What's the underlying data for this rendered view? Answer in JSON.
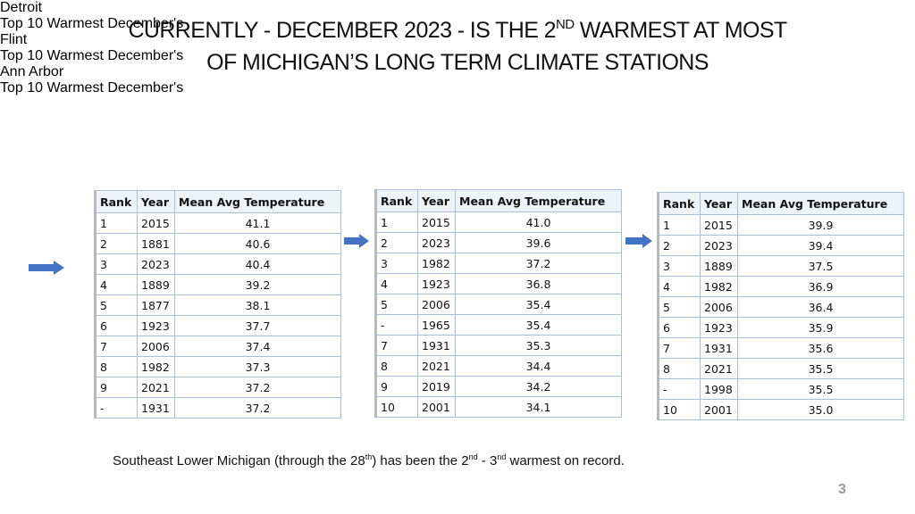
{
  "title": {
    "line1": [
      {
        "text": "CURRENTLY - DECEMBER 2023 - IS THE 2"
      },
      {
        "sup": "ND"
      },
      {
        "text": " WARMEST AT MOST"
      }
    ],
    "line2": "OF MICHIGAN’S LONG TERM  CLIMATE STATIONS"
  },
  "tables": [
    {
      "station": "Detroit",
      "subtitle": "Top 10 Warmest December's",
      "columns": [
        "Rank",
        "Year",
        "Mean Avg Temperature"
      ],
      "rows": [
        [
          "1",
          "2015",
          "41.1"
        ],
        [
          "2",
          "1881",
          "40.6"
        ],
        [
          "3",
          "2023",
          "40.4"
        ],
        [
          "4",
          "1889",
          "39.2"
        ],
        [
          "5",
          "1877",
          "38.1"
        ],
        [
          "6",
          "1923",
          "37.7"
        ],
        [
          "7",
          "2006",
          "37.4"
        ],
        [
          "8",
          "1982",
          "37.3"
        ],
        [
          "9",
          "2021",
          "37.2"
        ],
        [
          "-",
          "1931",
          "37.2"
        ]
      ]
    },
    {
      "station": "Flint",
      "subtitle": "Top 10 Warmest December's",
      "columns": [
        "Rank",
        "Year",
        "Mean Avg Temperature"
      ],
      "rows": [
        [
          "1",
          "2015",
          "41.0"
        ],
        [
          "2",
          "2023",
          "39.6"
        ],
        [
          "3",
          "1982",
          "37.2"
        ],
        [
          "4",
          "1923",
          "36.8"
        ],
        [
          "5",
          "2006",
          "35.4"
        ],
        [
          "-",
          "1965",
          "35.4"
        ],
        [
          "7",
          "1931",
          "35.3"
        ],
        [
          "8",
          "2021",
          "34.4"
        ],
        [
          "9",
          "2019",
          "34.2"
        ],
        [
          "10",
          "2001",
          "34.1"
        ]
      ]
    },
    {
      "station": "Ann Arbor",
      "subtitle": "Top 10 Warmest December's",
      "columns": [
        "Rank",
        "Year",
        "Mean Avg Temperature"
      ],
      "rows": [
        [
          "1",
          "2015",
          "39.9"
        ],
        [
          "2",
          "2023",
          "39.4"
        ],
        [
          "3",
          "1889",
          "37.5"
        ],
        [
          "4",
          "1982",
          "36.9"
        ],
        [
          "5",
          "2006",
          "36.4"
        ],
        [
          "6",
          "1923",
          "35.9"
        ],
        [
          "7",
          "1931",
          "35.6"
        ],
        [
          "8",
          "2021",
          "35.5"
        ],
        [
          "-",
          "1998",
          "35.5"
        ],
        [
          "10",
          "2001",
          "35.0"
        ]
      ]
    }
  ],
  "footnote": [
    {
      "text": "Southeast Lower Michigan (through the 28"
    },
    {
      "sup": "th"
    },
    {
      "text": ") has been the 2"
    },
    {
      "sup": "nd"
    },
    {
      "text": " - 3"
    },
    {
      "sup": "nd"
    },
    {
      "text": " warmest on record."
    }
  ],
  "page_number": "3"
}
